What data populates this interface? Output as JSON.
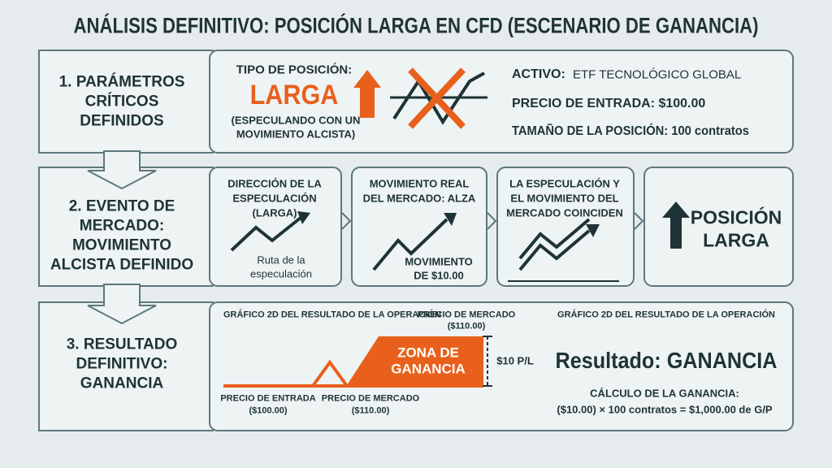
{
  "title": "ANÁLISIS DEFINITIVO: POSICIÓN LARGA EN CFD (ESCENARIO DE GANANCIA)",
  "steps": [
    {
      "label": [
        "1. PARÁMETROS",
        "CRÍTICOS",
        "DEFINIDOS"
      ]
    },
    {
      "label": [
        "2. EVENTO DE",
        "MERCADO:",
        "MOVIMIENTO",
        "ALCISTA DEFINIDO"
      ]
    },
    {
      "label": [
        "3. RESULTADO",
        "DEFINITIVO:",
        "GANANCIA"
      ]
    }
  ],
  "parameters": {
    "position_type_label": "TIPO DE POSICIÓN:",
    "position_type": "LARGA",
    "position_note": [
      "(ESPECULANDO CON UN",
      "MOVIMIENTO ALCISTA)"
    ],
    "asset_label": "ACTIVO:",
    "asset": "ETF TECNOLÓGICO GLOBAL",
    "entry_price": "PRECIO DE ENTRADA: $100.00",
    "position_size": "TAMAÑO DE LA POSICIÓN: 100 contratos"
  },
  "event_cards": [
    {
      "title": [
        "DIRECCIÓN DE LA",
        "ESPECULACIÓN",
        "(LARGA)"
      ],
      "caption": [
        "Ruta de la",
        "especulación"
      ]
    },
    {
      "title": [
        "MOVIMIENTO REAL",
        "DEL MERCADO: ALZA"
      ],
      "caption": [
        "MOVIMIENTO",
        "DE $10.00"
      ]
    },
    {
      "title": [
        "LA ESPECULACIÓN Y",
        "EL MOVIMIENTO DEL",
        "MERCADO COINCIDEN"
      ]
    },
    {
      "title": [
        "POSICIÓN",
        "LARGA"
      ]
    }
  ],
  "result": {
    "chart_title": "GRÁFICO 2D DEL RESULTADO DE LA OPERACIÓN",
    "market_price_top": [
      "PRECIO DE MERCADO",
      "($110.00)"
    ],
    "zone": [
      "ZONA DE",
      "GANANCIA"
    ],
    "pl": "$10 P/L",
    "entry_label": [
      "PRECIO DE ENTRADA",
      "($100.00)"
    ],
    "market_label": [
      "PRECIO DE MERCADO",
      "($110.00)"
    ],
    "summary_title": "GRÁFICO 2D DEL RESULTADO DE LA OPERACIÓN",
    "outcome": "Resultado: GANANCIA",
    "calc_label": "CÁLCULO DE LA GANANCIA:",
    "calc": "($10.00) × 100 contratos = $1,000.00 de G/P"
  }
}
